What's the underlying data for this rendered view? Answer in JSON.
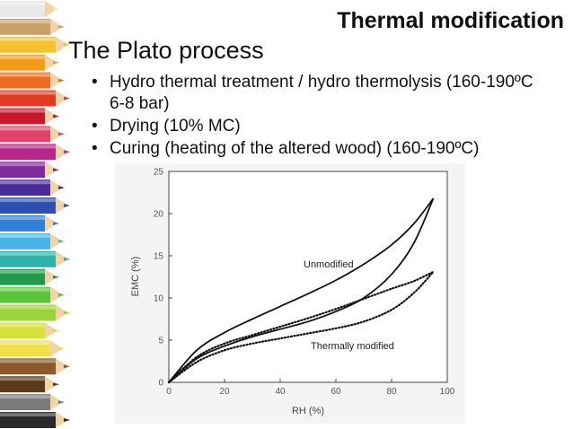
{
  "slide": {
    "title": "Thermal modification",
    "subtitle": "The Plato process",
    "bullets": [
      "Hydro thermal treatment / hydro thermolysis (160-190ºC  6-8 bar)",
      "Drying (10% MC)",
      "Curing (heating of the altered wood) (160-190ºC)"
    ]
  },
  "colors": {
    "pencils": [
      "#e8e8e8",
      "#c9a26b",
      "#f2c230",
      "#f59b1a",
      "#ee6a1c",
      "#e23b23",
      "#c8162b",
      "#e0426a",
      "#b8278a",
      "#7d2a9a",
      "#4b2a9a",
      "#2b4fb3",
      "#2e80d8",
      "#45b5e8",
      "#2ab3a6",
      "#1f9a4d",
      "#5cc43a",
      "#9ad43a",
      "#d6e03a",
      "#f0e04a",
      "#8a5a2b",
      "#5a3a1a",
      "#7a7a7a",
      "#2a2a2a"
    ]
  },
  "chart_data": {
    "type": "line",
    "xlabel": "RH (%)",
    "ylabel": "EMC (%)",
    "xlim": [
      0,
      100
    ],
    "ylim": [
      0,
      25
    ],
    "xticks": [
      0,
      20,
      40,
      60,
      80,
      100
    ],
    "yticks": [
      0,
      5,
      10,
      15,
      20,
      25
    ],
    "grid": false,
    "annotations": [
      "Unmodified",
      "Thermally modified"
    ],
    "series": [
      {
        "style": "solid",
        "branch": "adsorption",
        "x": [
          0,
          10,
          20,
          30,
          40,
          50,
          60,
          70,
          80,
          88,
          95
        ],
        "y": [
          0,
          2.8,
          4.3,
          5.4,
          6.3,
          7.2,
          8.4,
          10.0,
          12.8,
          16.5,
          21.8
        ]
      },
      {
        "style": "solid",
        "branch": "desorption",
        "x": [
          0,
          10,
          20,
          30,
          40,
          50,
          60,
          70,
          80,
          88,
          95
        ],
        "y": [
          0,
          3.8,
          5.9,
          7.5,
          9.0,
          10.5,
          12.1,
          14.0,
          16.3,
          18.8,
          21.8
        ]
      },
      {
        "style": "dotted",
        "branch": "adsorption",
        "x": [
          0,
          10,
          20,
          30,
          40,
          50,
          60,
          70,
          80,
          88,
          95
        ],
        "y": [
          0,
          2.4,
          3.8,
          4.6,
          5.2,
          5.8,
          6.4,
          7.2,
          8.6,
          10.6,
          13.1
        ]
      },
      {
        "style": "dotted",
        "branch": "desorption",
        "x": [
          0,
          10,
          20,
          30,
          40,
          50,
          60,
          70,
          80,
          88,
          95
        ],
        "y": [
          0,
          3.0,
          4.6,
          5.6,
          6.6,
          7.6,
          8.7,
          9.9,
          11.1,
          12.0,
          13.1
        ]
      }
    ]
  }
}
